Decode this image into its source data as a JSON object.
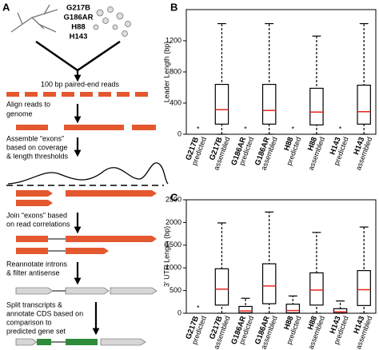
{
  "diagram": {
    "panel_label": "A",
    "strains": [
      "G217B",
      "G186AR",
      "H88",
      "H143"
    ],
    "steps": [
      {
        "lines": [
          "100 bp paired-end reads"
        ]
      },
      {
        "lines": [
          "Align reads to",
          "genome"
        ]
      },
      {
        "lines": [
          "Assemble “exons”",
          "based on coverage",
          "& length thresholds"
        ]
      },
      {
        "lines": [
          "Join “exons” based",
          "on read correlations"
        ]
      },
      {
        "lines": [
          "Reannotate introns",
          "& filter antisense"
        ]
      },
      {
        "lines": [
          "Split transcripts &",
          "annotate CDS based on",
          "comparison to",
          "predicted gene set"
        ]
      }
    ]
  },
  "chart_data": [
    {
      "type": "box",
      "panel_label": "B",
      "y_label": "Leader Length (bp)",
      "missing_label": "*",
      "categories": [
        [
          "G217B",
          "predicted"
        ],
        [
          "G217B",
          "assembled"
        ],
        [
          "G186AR",
          "predicted"
        ],
        [
          "G186AR",
          "assembled"
        ],
        [
          "H88",
          "predicted"
        ],
        [
          "H88",
          "assembled"
        ],
        [
          "H143",
          "predicted"
        ],
        [
          "H143",
          "assembled"
        ]
      ],
      "min": [
        null,
        0,
        null,
        0,
        null,
        0,
        null,
        0
      ],
      "q1": [
        null,
        130,
        null,
        130,
        null,
        120,
        null,
        130
      ],
      "median": [
        null,
        315,
        null,
        305,
        null,
        285,
        null,
        290
      ],
      "q3": [
        null,
        640,
        null,
        640,
        null,
        590,
        null,
        630
      ],
      "max": [
        null,
        1420,
        null,
        1420,
        null,
        1260,
        null,
        1420
      ],
      "box_color": "#000000",
      "median_color": "#e8261f",
      "ylim": [
        0,
        1600
      ],
      "yticks": [
        0,
        400,
        800,
        1200
      ]
    },
    {
      "type": "box",
      "panel_label": "C",
      "y_label": "3' UTR Length (bp)",
      "missing_label": "*",
      "categories": [
        [
          "G217B",
          "predicted"
        ],
        [
          "G217B",
          "assembled"
        ],
        [
          "G186AR",
          "predicted"
        ],
        [
          "G186AR",
          "assembled"
        ],
        [
          "H88",
          "predicted"
        ],
        [
          "H88",
          "assembled"
        ],
        [
          "H143",
          "predicted"
        ],
        [
          "H143",
          "assembled"
        ]
      ],
      "min": [
        null,
        0,
        0,
        0,
        0,
        0,
        0,
        0
      ],
      "q1": [
        null,
        180,
        10,
        210,
        10,
        180,
        5,
        170
      ],
      "median": [
        null,
        530,
        50,
        600,
        60,
        510,
        30,
        520
      ],
      "q3": [
        null,
        980,
        150,
        1090,
        200,
        890,
        100,
        940
      ],
      "max": [
        null,
        1990,
        330,
        2230,
        380,
        1780,
        270,
        1900
      ],
      "box_color": "#000000",
      "median_color": "#e8261f",
      "ylim": [
        0,
        2500
      ],
      "yticks": [
        0,
        500,
        1000,
        1500,
        2000,
        2500
      ]
    }
  ]
}
